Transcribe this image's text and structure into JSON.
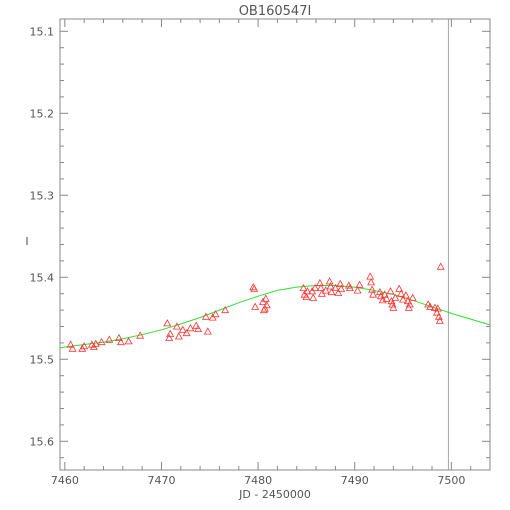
{
  "chart_data": {
    "type": "scatter",
    "title": "OB160547I",
    "xlabel": "JD - 2450000",
    "ylabel": "I",
    "xlim": [
      7459.5,
      7504
    ],
    "ylim": [
      15.635,
      15.085
    ],
    "y_inverted": true,
    "x_ticks": [
      7460,
      7470,
      7480,
      7490,
      7500
    ],
    "y_ticks": [
      15.1,
      15.2,
      15.3,
      15.4,
      15.5,
      15.6
    ],
    "x_tick_labels": [
      "7460",
      "7470",
      "7480",
      "7490",
      "7500"
    ],
    "y_tick_labels": [
      "15.1",
      "15.2",
      "15.3",
      "15.4",
      "15.5",
      "15.6"
    ],
    "grid": false,
    "vertical_line_x": 7499.7,
    "colors": {
      "points": "#ff3333",
      "model": "#33dd33",
      "vline": "#aaaaaa",
      "axes": "#888888"
    },
    "model_curve": {
      "x": [
        7459.5,
        7462,
        7464,
        7466,
        7468,
        7470,
        7472,
        7474,
        7476,
        7478,
        7480,
        7482,
        7484,
        7486,
        7488,
        7490,
        7492,
        7494,
        7496,
        7498,
        7500,
        7502,
        7504
      ],
      "y": [
        15.486,
        15.482,
        15.479,
        15.475,
        15.47,
        15.464,
        15.457,
        15.449,
        15.44,
        15.431,
        15.423,
        15.416,
        15.412,
        15.41,
        15.41,
        15.412,
        15.416,
        15.421,
        15.428,
        15.436,
        15.444,
        15.451,
        15.458
      ]
    },
    "series": [
      {
        "marker": "triangle",
        "points": [
          [
            7460.6,
            15.482
          ],
          [
            7460.8,
            15.487
          ],
          [
            7461.8,
            15.487
          ],
          [
            7462.0,
            15.484
          ],
          [
            7462.8,
            15.482
          ],
          [
            7463.0,
            15.485
          ],
          [
            7463.2,
            15.481
          ],
          [
            7463.8,
            15.479
          ],
          [
            7464.6,
            15.476
          ],
          [
            7465.6,
            15.474
          ],
          [
            7465.8,
            15.479
          ],
          [
            7466.6,
            15.478
          ],
          [
            7467.8,
            15.471
          ],
          [
            7470.6,
            15.456
          ],
          [
            7470.8,
            15.474
          ],
          [
            7470.9,
            15.469
          ],
          [
            7471.6,
            15.46
          ],
          [
            7471.8,
            15.472
          ],
          [
            7472.2,
            15.464
          ],
          [
            7472.6,
            15.468
          ],
          [
            7473.0,
            15.462
          ],
          [
            7473.6,
            15.459
          ],
          [
            7473.8,
            15.463
          ],
          [
            7474.6,
            15.448
          ],
          [
            7474.8,
            15.466
          ],
          [
            7475.3,
            15.449
          ],
          [
            7475.6,
            15.445
          ],
          [
            7476.6,
            15.44
          ],
          [
            7479.5,
            15.412
          ],
          [
            7479.6,
            15.414
          ],
          [
            7479.7,
            15.436
          ],
          [
            7480.5,
            15.43
          ],
          [
            7480.6,
            15.44
          ],
          [
            7480.7,
            15.438
          ],
          [
            7480.8,
            15.426
          ],
          [
            7480.9,
            15.434
          ],
          [
            7484.7,
            15.413
          ],
          [
            7484.8,
            15.421
          ],
          [
            7485.0,
            15.424
          ],
          [
            7485.1,
            15.417
          ],
          [
            7485.6,
            15.417
          ],
          [
            7485.7,
            15.425
          ],
          [
            7485.9,
            15.413
          ],
          [
            7486.4,
            15.407
          ],
          [
            7486.5,
            15.413
          ],
          [
            7486.6,
            15.42
          ],
          [
            7487.0,
            15.416
          ],
          [
            7487.4,
            15.405
          ],
          [
            7487.5,
            15.411
          ],
          [
            7487.6,
            15.418
          ],
          [
            7488.0,
            15.413
          ],
          [
            7488.3,
            15.419
          ],
          [
            7488.5,
            15.408
          ],
          [
            7488.6,
            15.414
          ],
          [
            7489.4,
            15.41
          ],
          [
            7489.5,
            15.413
          ],
          [
            7490.3,
            15.416
          ],
          [
            7490.5,
            15.409
          ],
          [
            7491.6,
            15.399
          ],
          [
            7491.7,
            15.406
          ],
          [
            7491.8,
            15.415
          ],
          [
            7491.9,
            15.421
          ],
          [
            7492.6,
            15.418
          ],
          [
            7492.7,
            15.423
          ],
          [
            7492.9,
            15.428
          ],
          [
            7493.1,
            15.421
          ],
          [
            7493.3,
            15.426
          ],
          [
            7493.7,
            15.417
          ],
          [
            7493.8,
            15.429
          ],
          [
            7493.9,
            15.433
          ],
          [
            7494.0,
            15.437
          ],
          [
            7494.2,
            15.425
          ],
          [
            7494.6,
            15.414
          ],
          [
            7494.8,
            15.42
          ],
          [
            7495.0,
            15.427
          ],
          [
            7495.3,
            15.422
          ],
          [
            7495.5,
            15.429
          ],
          [
            7495.6,
            15.437
          ],
          [
            7495.7,
            15.433
          ],
          [
            7496.0,
            15.425
          ],
          [
            7497.6,
            15.433
          ],
          [
            7497.8,
            15.436
          ],
          [
            7498.3,
            15.437
          ],
          [
            7498.5,
            15.443
          ],
          [
            7498.6,
            15.438
          ],
          [
            7498.7,
            15.448
          ],
          [
            7498.8,
            15.453
          ],
          [
            7498.9,
            15.387
          ]
        ]
      }
    ]
  }
}
